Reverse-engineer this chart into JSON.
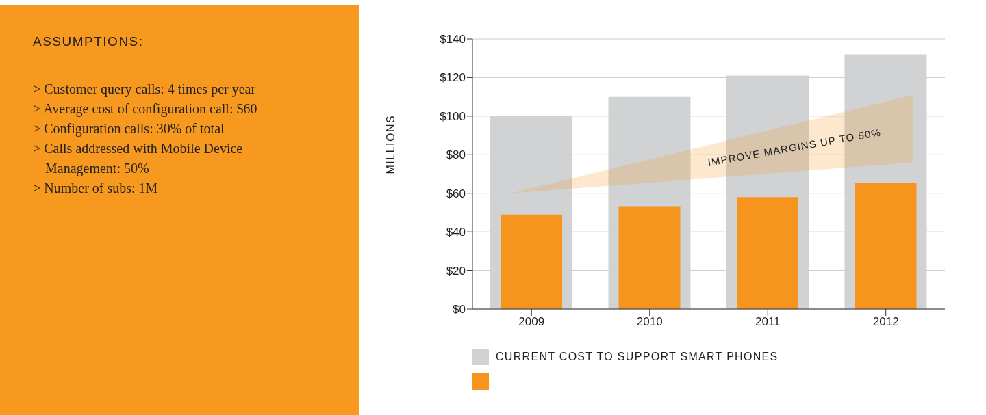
{
  "chart_data": [
    {
      "type": "other",
      "title": "ASSUMPTIONS:",
      "annotations": [
        "> Customer query calls: 4 times per year",
        "> Average cost of configuration call: $60",
        "> Configuration calls: 30% of total",
        "> Calls addressed with Mobile Device Management: 50%",
        "> Number of subs: 1M"
      ]
    },
    {
      "type": "bar",
      "categories": [
        "2009",
        "2010",
        "2011",
        "2012"
      ],
      "ylabel": "MILLIONS",
      "ylim": [
        0,
        140
      ],
      "yticks": [
        {
          "value": 0,
          "label": "$0"
        },
        {
          "value": 20,
          "label": "$20"
        },
        {
          "value": 40,
          "label": "$40"
        },
        {
          "value": 60,
          "label": "$60"
        },
        {
          "value": 80,
          "label": "$80"
        },
        {
          "value": 100,
          "label": "$100"
        },
        {
          "value": 120,
          "label": "$120"
        },
        {
          "value": 140,
          "label": "$140"
        }
      ],
      "grid": "y",
      "legend": "bottom left",
      "annotations": [
        "IMPROVE MARGINS UP TO 50%"
      ],
      "series": [
        {
          "name": "CURRENT COST TO SUPPORT SMART PHONES",
          "color": "#d1d2d4",
          "values": [
            100,
            110,
            121,
            132
          ]
        },
        {
          "color": "#f7941d",
          "values": [
            49,
            53,
            58,
            65.5
          ]
        }
      ]
    }
  ]
}
